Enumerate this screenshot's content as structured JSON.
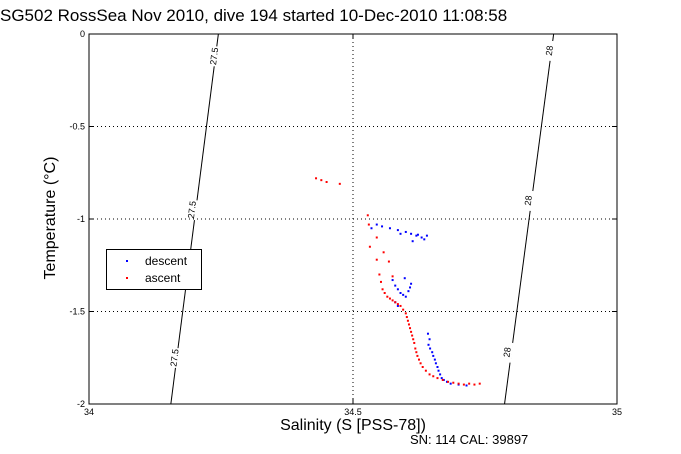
{
  "chart_data": {
    "type": "scatter",
    "title": "SG502 RossSea Nov 2010, dive 194 started 10-Dec-2010 11:08:58",
    "xlabel": "Salinity (S [PSS-78])",
    "ylabel": "Temperature (°C)",
    "xlim": [
      34,
      35
    ],
    "ylim": [
      -2,
      0
    ],
    "x_ticks": [
      "34",
      "34.5",
      "35"
    ],
    "y_ticks": [
      "0",
      "-0.5",
      "-1",
      "-1.5",
      "-2"
    ],
    "grid": true,
    "legend_placement": "middle-left",
    "footnote": "SN: 114  CAL: 39897",
    "isopycnals": [
      {
        "label": "27.5",
        "points": [
          [
            34.155,
            -2.0
          ],
          [
            34.245,
            0.0
          ]
        ],
        "label_positions": [
          [
            34.162,
            -1.75
          ],
          [
            34.195,
            -0.95
          ],
          [
            34.237,
            -0.12
          ]
        ]
      },
      {
        "label": "28",
        "points": [
          [
            34.787,
            -2.0
          ],
          [
            34.88,
            0.0
          ]
        ],
        "label_positions": [
          [
            34.792,
            -1.72
          ],
          [
            34.832,
            -0.9
          ],
          [
            34.872,
            -0.09
          ]
        ]
      }
    ],
    "series": [
      {
        "name": "descent",
        "color": "#0000ff",
        "points": [
          [
            34.535,
            -1.05
          ],
          [
            34.555,
            -1.04
          ],
          [
            34.57,
            -1.05
          ],
          [
            34.585,
            -1.06
          ],
          [
            34.6,
            -1.07
          ],
          [
            34.61,
            -1.08
          ],
          [
            34.62,
            -1.09
          ],
          [
            34.63,
            -1.1
          ],
          [
            34.635,
            -1.11
          ],
          [
            34.613,
            -1.12
          ],
          [
            34.545,
            -1.03
          ],
          [
            34.59,
            -1.08
          ],
          [
            34.64,
            -1.09
          ],
          [
            34.623,
            -1.085
          ],
          [
            34.575,
            -1.33
          ],
          [
            34.58,
            -1.36
          ],
          [
            34.585,
            -1.38
          ],
          [
            34.59,
            -1.4
          ],
          [
            34.595,
            -1.41
          ],
          [
            34.6,
            -1.42
          ],
          [
            34.605,
            -1.39
          ],
          [
            34.608,
            -1.37
          ],
          [
            34.61,
            -1.35
          ],
          [
            34.598,
            -1.32
          ],
          [
            34.58,
            -1.45
          ],
          [
            34.585,
            -1.47
          ],
          [
            34.642,
            -1.62
          ],
          [
            34.645,
            -1.65
          ],
          [
            34.643,
            -1.68
          ],
          [
            34.646,
            -1.7
          ],
          [
            34.65,
            -1.72
          ],
          [
            34.652,
            -1.74
          ],
          [
            34.655,
            -1.76
          ],
          [
            34.657,
            -1.78
          ],
          [
            34.66,
            -1.8
          ],
          [
            34.662,
            -1.82
          ],
          [
            34.665,
            -1.84
          ],
          [
            34.668,
            -1.86
          ],
          [
            34.672,
            -1.87
          ],
          [
            34.678,
            -1.88
          ],
          [
            34.685,
            -1.89
          ],
          [
            34.7,
            -1.895
          ],
          [
            34.715,
            -1.9
          ]
        ]
      },
      {
        "name": "ascent",
        "color": "#ff0000",
        "points": [
          [
            34.43,
            -0.78
          ],
          [
            34.44,
            -0.79
          ],
          [
            34.45,
            -0.8
          ],
          [
            34.475,
            -0.81
          ],
          [
            34.528,
            -0.98
          ],
          [
            34.532,
            -1.15
          ],
          [
            34.545,
            -1.22
          ],
          [
            34.55,
            -1.3
          ],
          [
            34.553,
            -1.34
          ],
          [
            34.556,
            -1.38
          ],
          [
            34.56,
            -1.4
          ],
          [
            34.565,
            -1.42
          ],
          [
            34.57,
            -1.43
          ],
          [
            34.575,
            -1.44
          ],
          [
            34.58,
            -1.45
          ],
          [
            34.585,
            -1.46
          ],
          [
            34.59,
            -1.47
          ],
          [
            34.595,
            -1.49
          ],
          [
            34.6,
            -1.51
          ],
          [
            34.602,
            -1.53
          ],
          [
            34.604,
            -1.55
          ],
          [
            34.606,
            -1.57
          ],
          [
            34.608,
            -1.59
          ],
          [
            34.61,
            -1.61
          ],
          [
            34.612,
            -1.63
          ],
          [
            34.614,
            -1.65
          ],
          [
            34.616,
            -1.67
          ],
          [
            34.618,
            -1.7
          ],
          [
            34.62,
            -1.72
          ],
          [
            34.622,
            -1.74
          ],
          [
            34.625,
            -1.76
          ],
          [
            34.628,
            -1.78
          ],
          [
            34.632,
            -1.8
          ],
          [
            34.638,
            -1.82
          ],
          [
            34.645,
            -1.84
          ],
          [
            34.652,
            -1.85
          ],
          [
            34.66,
            -1.86
          ],
          [
            34.67,
            -1.87
          ],
          [
            34.68,
            -1.88
          ],
          [
            34.69,
            -1.885
          ],
          [
            34.7,
            -1.89
          ],
          [
            34.71,
            -1.895
          ],
          [
            34.72,
            -1.89
          ],
          [
            34.73,
            -1.895
          ],
          [
            34.74,
            -1.89
          ],
          [
            34.568,
            -1.23
          ],
          [
            34.575,
            -1.31
          ],
          [
            34.545,
            -1.1
          ],
          [
            34.53,
            -1.03
          ],
          [
            34.558,
            -1.18
          ]
        ]
      }
    ]
  }
}
